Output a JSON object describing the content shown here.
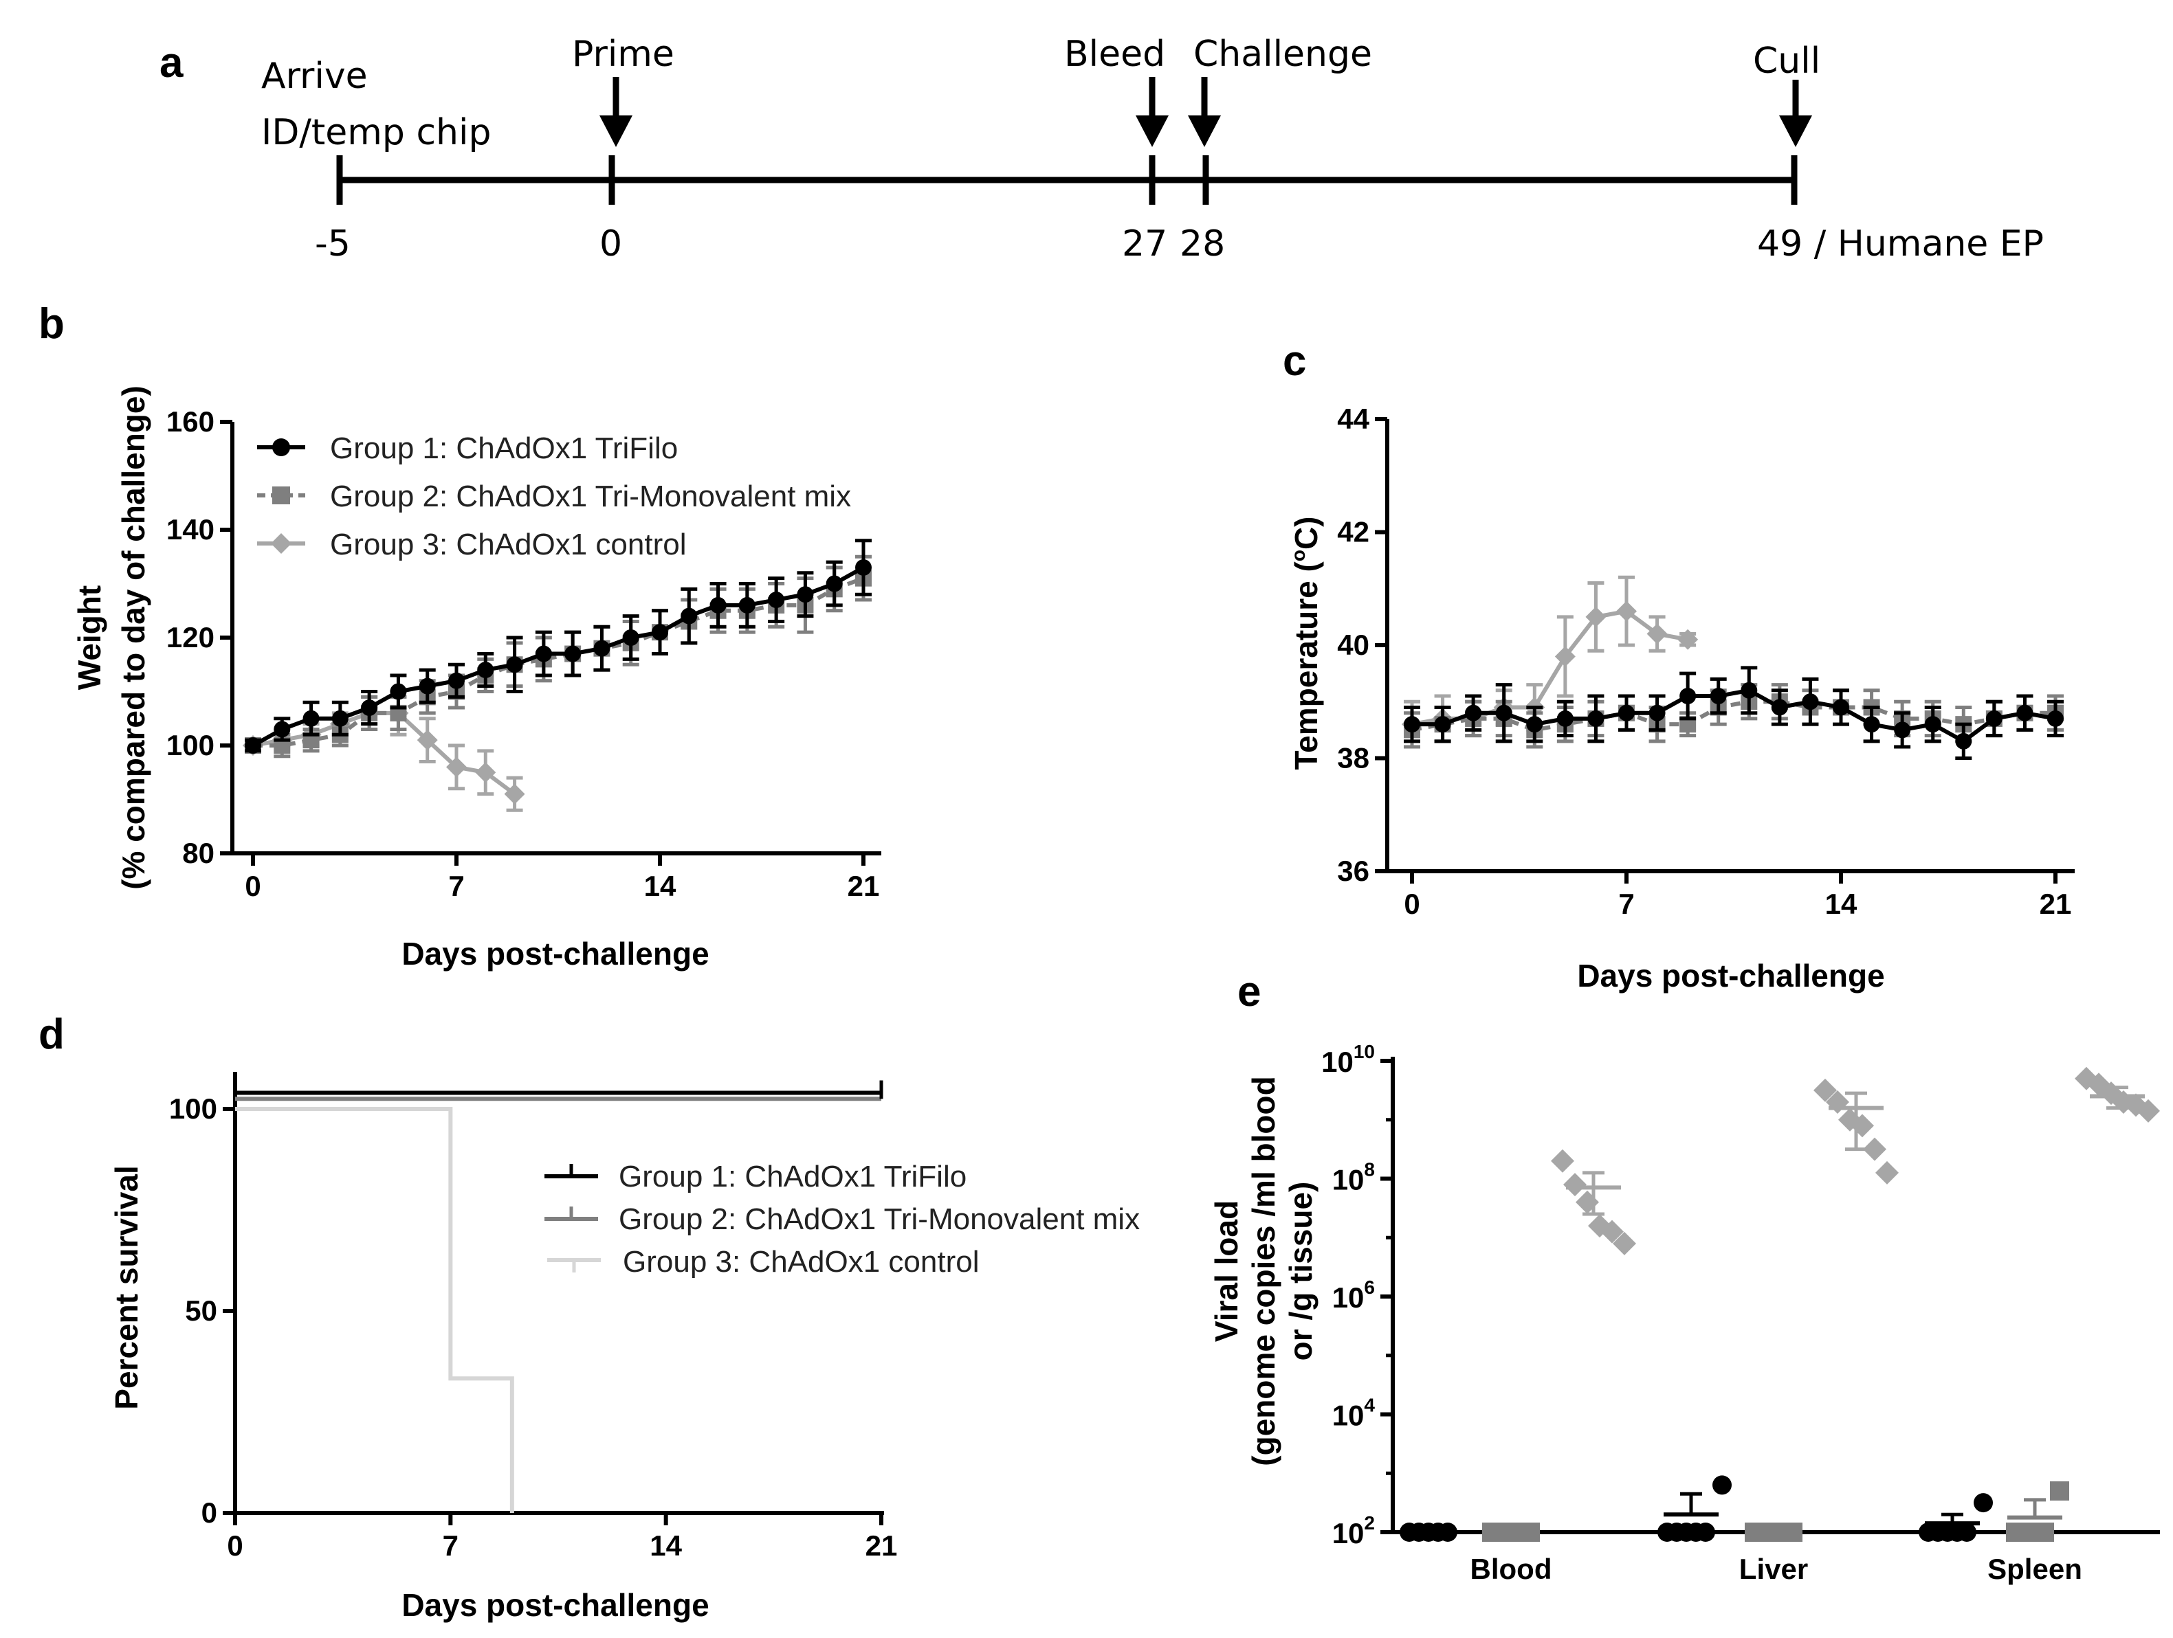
{
  "colors": {
    "group1": "#000000",
    "group2": "#7f7f7f",
    "group3": "#a6a6a6",
    "group3_survival": "#d6d6d6"
  },
  "panels": {
    "a": "a",
    "b": "b",
    "c": "c",
    "d": "d",
    "e": "e"
  },
  "timeline": {
    "events": [
      {
        "day": -5,
        "label_top": "Arrive",
        "label_bottom": "ID/temp chip",
        "tick": "-5"
      },
      {
        "day": 0,
        "label": "Prime",
        "tick": "0"
      },
      {
        "day": 27,
        "label": "Bleed",
        "tick": "27"
      },
      {
        "day": 28,
        "label": "Challenge",
        "tick": "28"
      },
      {
        "day": 49,
        "label": "Cull",
        "tick": "49 / Humane EP"
      }
    ]
  },
  "legend_bc": [
    "Group 1: ChAdOx1 TriFilo",
    "Group 2: ChAdOx1 Tri-Monovalent mix",
    "Group 3: ChAdOx1 control"
  ],
  "legend_d": [
    "Group 1: ChAdOx1 TriFilo",
    "Group 2: ChAdOx1 Tri-Monovalent mix",
    "Group 3: ChAdOx1 control"
  ],
  "chart_data": [
    {
      "id": "b",
      "type": "line",
      "xlabel": "Days post-challenge",
      "ylabel_line1": "Weight",
      "ylabel_line2": "(% compared to day of challenge)",
      "xlim": [
        0,
        21
      ],
      "ylim": [
        80,
        160
      ],
      "xticks": [
        0,
        7,
        14,
        21
      ],
      "yticks": [
        80,
        100,
        120,
        140,
        160
      ],
      "series": [
        {
          "name": "Group 1: ChAdOx1 TriFilo",
          "x": [
            0,
            1,
            2,
            3,
            4,
            5,
            6,
            7,
            8,
            9,
            10,
            11,
            12,
            13,
            14,
            15,
            16,
            17,
            18,
            19,
            20,
            21
          ],
          "y": [
            100,
            103,
            105,
            105,
            107,
            110,
            111,
            112,
            114,
            115,
            117,
            117,
            118,
            120,
            121,
            124,
            126,
            126,
            127,
            128,
            130,
            133
          ],
          "err": [
            1,
            2,
            3,
            3,
            3,
            3,
            3,
            3,
            3,
            5,
            4,
            4,
            4,
            4,
            4,
            5,
            4,
            4,
            4,
            4,
            4,
            5
          ]
        },
        {
          "name": "Group 2: ChAdOx1 Tri-Monovalent mix",
          "x": [
            0,
            1,
            2,
            3,
            4,
            5,
            6,
            7,
            8,
            9,
            10,
            11,
            12,
            13,
            14,
            15,
            16,
            17,
            18,
            19,
            20,
            21
          ],
          "y": [
            100,
            100,
            101,
            102,
            106,
            106,
            109,
            110,
            113,
            115,
            116,
            117,
            118,
            119,
            121,
            123,
            125,
            125,
            126,
            126,
            129,
            131
          ],
          "err": [
            1,
            2,
            2,
            2,
            3,
            3,
            3,
            3,
            3,
            4,
            4,
            4,
            4,
            4,
            4,
            4,
            4,
            4,
            4,
            5,
            4,
            4
          ]
        },
        {
          "name": "Group 3: ChAdOx1 control",
          "x": [
            0,
            1,
            2,
            3,
            4,
            5,
            6,
            7,
            8,
            9
          ],
          "y": [
            100,
            101,
            102,
            104,
            106,
            106,
            101,
            96,
            95,
            91
          ],
          "err": [
            1,
            1,
            2,
            2,
            3,
            4,
            4,
            4,
            4,
            3
          ]
        }
      ]
    },
    {
      "id": "c",
      "type": "line",
      "xlabel": "Days post-challenge",
      "ylabel": "Temperature (°C)",
      "ylabel_prefix": "Temperature (",
      "ylabel_sup": "o",
      "ylabel_suffix": "C)",
      "xlim": [
        0,
        21
      ],
      "ylim": [
        36,
        44
      ],
      "xticks": [
        0,
        7,
        14,
        21
      ],
      "yticks": [
        36,
        38,
        40,
        42,
        44
      ],
      "series": [
        {
          "name": "Group 1: ChAdOx1 TriFilo",
          "x": [
            0,
            1,
            2,
            3,
            4,
            5,
            6,
            7,
            8,
            9,
            10,
            11,
            12,
            13,
            14,
            15,
            16,
            17,
            18,
            19,
            20,
            21
          ],
          "y": [
            38.6,
            38.6,
            38.8,
            38.8,
            38.6,
            38.7,
            38.7,
            38.8,
            38.8,
            39.1,
            39.1,
            39.2,
            38.9,
            39.0,
            38.9,
            38.6,
            38.5,
            38.6,
            38.3,
            38.7,
            38.8,
            38.7
          ],
          "err": [
            0.3,
            0.3,
            0.3,
            0.5,
            0.3,
            0.3,
            0.4,
            0.3,
            0.3,
            0.4,
            0.3,
            0.4,
            0.3,
            0.4,
            0.3,
            0.3,
            0.3,
            0.3,
            0.3,
            0.3,
            0.3,
            0.3
          ]
        },
        {
          "name": "Group 2: ChAdOx1 Tri-Monovalent mix",
          "x": [
            0,
            1,
            2,
            3,
            4,
            5,
            6,
            7,
            8,
            9,
            10,
            11,
            12,
            13,
            14,
            15,
            16,
            17,
            18,
            19,
            20,
            21
          ],
          "y": [
            38.5,
            38.6,
            38.7,
            38.7,
            38.5,
            38.6,
            38.7,
            38.8,
            38.6,
            38.6,
            38.9,
            39.0,
            39.0,
            38.9,
            38.9,
            38.9,
            38.7,
            38.7,
            38.6,
            38.7,
            38.8,
            38.8
          ],
          "err": [
            0.3,
            0.3,
            0.3,
            0.3,
            0.3,
            0.3,
            0.3,
            0.3,
            0.3,
            0.2,
            0.3,
            0.3,
            0.3,
            0.3,
            0.3,
            0.3,
            0.3,
            0.3,
            0.3,
            0.3,
            0.3,
            0.3
          ]
        },
        {
          "name": "Group 3: ChAdOx1 control",
          "x": [
            0,
            1,
            2,
            3,
            4,
            5,
            6,
            7,
            8,
            9
          ],
          "y": [
            38.6,
            38.7,
            38.7,
            38.9,
            38.9,
            39.8,
            40.5,
            40.6,
            40.2,
            40.1
          ],
          "err": [
            0.4,
            0.4,
            0.3,
            0.3,
            0.4,
            0.7,
            0.6,
            0.6,
            0.3,
            0.1
          ]
        }
      ]
    },
    {
      "id": "d",
      "type": "line",
      "subtype": "survival-step",
      "xlabel": "Days post-challenge",
      "ylabel": "Percent survival",
      "xlim": [
        0,
        21
      ],
      "ylim": [
        0,
        110
      ],
      "xticks": [
        0,
        7,
        14,
        21
      ],
      "yticks": [
        0,
        50,
        100
      ],
      "series": [
        {
          "name": "Group 1: ChAdOx1 TriFilo",
          "steps": [
            [
              0,
              104
            ],
            [
              21,
              104
            ]
          ]
        },
        {
          "name": "Group 2: ChAdOx1 Tri-Monovalent mix",
          "steps": [
            [
              0,
              102.5
            ],
            [
              21,
              102.5
            ]
          ]
        },
        {
          "name": "Group 3: ChAdOx1 control",
          "steps": [
            [
              0,
              100
            ],
            [
              7,
              100
            ],
            [
              7,
              33.3
            ],
            [
              9,
              33.3
            ],
            [
              9,
              0
            ]
          ]
        }
      ]
    },
    {
      "id": "e",
      "type": "scatter",
      "yscale": "log",
      "ylabel_line1": "Viral load",
      "ylabel_line2": "(genome copies /ml blood",
      "ylabel_line3": "or /g tissue)",
      "categories": [
        "Blood",
        "Liver",
        "Spleen"
      ],
      "ylim_log10": [
        2,
        10
      ],
      "yticks": [
        {
          "base": "10",
          "exp": "2"
        },
        {
          "base": "10",
          "exp": "4"
        },
        {
          "base": "10",
          "exp": "6"
        },
        {
          "base": "10",
          "exp": "8"
        },
        {
          "base": "10",
          "exp": "10"
        }
      ],
      "series": [
        {
          "name": "Group 1: ChAdOx1 TriFilo",
          "points": {
            "Blood": [
              2,
              2,
              2,
              2,
              2
            ],
            "Liver": [
              2,
              2,
              2,
              2,
              2,
              2.8
            ],
            "Spleen": [
              2,
              2,
              2,
              2,
              2,
              2.5
            ]
          },
          "mean": {
            "Blood": 2.0,
            "Liver": 2.3,
            "Spleen": 2.15
          },
          "err_hi": {
            "Blood": 2.0,
            "Liver": 2.65,
            "Spleen": 2.3
          }
        },
        {
          "name": "Group 2: ChAdOx1 Tri-Monovalent mix",
          "points": {
            "Blood": [
              2,
              2,
              2,
              2,
              2
            ],
            "Liver": [
              2,
              2,
              2,
              2,
              2
            ],
            "Spleen": [
              2,
              2,
              2,
              2,
              2.7
            ]
          },
          "mean": {
            "Blood": 2.0,
            "Liver": 2.0,
            "Spleen": 2.25
          },
          "err_hi": {
            "Blood": 2.0,
            "Liver": 2.0,
            "Spleen": 2.55
          }
        },
        {
          "name": "Group 3: ChAdOx1 control",
          "points": {
            "Blood": [
              8.3,
              7.9,
              7.6,
              7.2,
              7.1,
              6.9
            ],
            "Liver": [
              9.5,
              9.3,
              9.0,
              8.9,
              8.5,
              8.1
            ],
            "Spleen": [
              9.7,
              9.6,
              9.45,
              9.3,
              9.25,
              9.15
            ]
          },
          "mean": {
            "Blood": 7.85,
            "Liver": 9.2,
            "Spleen": 9.4
          },
          "err_hi": {
            "Blood": 8.1,
            "Liver": 9.45,
            "Spleen": 9.55
          },
          "err_lo": {
            "Blood": 7.4,
            "Liver": 8.5,
            "Spleen": 9.2
          }
        }
      ]
    }
  ]
}
